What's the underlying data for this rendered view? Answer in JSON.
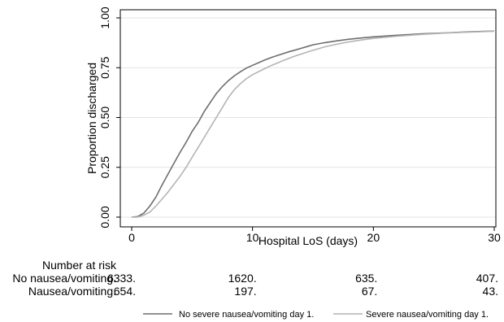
{
  "chart_data": {
    "type": "line",
    "title": "",
    "xlabel": "Hospital LoS (days)",
    "ylabel": "Proportion discharged",
    "xlim": [
      0,
      30
    ],
    "ylim": [
      0,
      1
    ],
    "x_ticks": [
      0,
      10,
      20,
      30
    ],
    "y_ticks": [
      0,
      0.25,
      0.5,
      0.75,
      1
    ],
    "x_tick_labels": [
      "0",
      "10",
      "20",
      "30"
    ],
    "y_tick_labels": [
      "0.00",
      "0.25",
      "0.50",
      "0.75",
      "1.00"
    ],
    "grid": "horizontal",
    "legend_position": "bottom",
    "series": [
      {
        "name": "No severe nausea/vomiting day 1",
        "color": "#6e6e6e",
        "x": [
          0,
          0.5,
          1,
          1.5,
          2,
          2.5,
          3,
          3.5,
          4,
          4.5,
          5,
          5.5,
          6,
          6.5,
          7,
          7.5,
          8,
          8.5,
          9,
          9.5,
          10,
          10.5,
          11,
          11.5,
          12,
          12.5,
          13,
          13.5,
          14,
          14.5,
          15,
          16,
          17,
          18,
          19,
          20,
          22,
          24,
          26,
          28,
          30
        ],
        "y": [
          0,
          0.003,
          0.02,
          0.055,
          0.1,
          0.16,
          0.215,
          0.27,
          0.325,
          0.375,
          0.43,
          0.475,
          0.53,
          0.575,
          0.62,
          0.655,
          0.685,
          0.71,
          0.73,
          0.748,
          0.762,
          0.775,
          0.788,
          0.8,
          0.81,
          0.82,
          0.83,
          0.838,
          0.847,
          0.856,
          0.865,
          0.876,
          0.885,
          0.893,
          0.899,
          0.905,
          0.913,
          0.92,
          0.925,
          0.93,
          0.934
        ]
      },
      {
        "name": "Severe nausea/vomiting day 1",
        "color": "#b4b4b4",
        "x": [
          0,
          0.5,
          1,
          1.5,
          2,
          2.5,
          3,
          3.5,
          4,
          4.5,
          5,
          5.5,
          6,
          6.5,
          7,
          7.5,
          8,
          8.5,
          9,
          9.5,
          10,
          10.5,
          11,
          11.5,
          12,
          12.5,
          13,
          13.5,
          14,
          14.5,
          15,
          16,
          17,
          18,
          19,
          20,
          22,
          24,
          26,
          28,
          30
        ],
        "y": [
          0,
          0,
          0.01,
          0.025,
          0.055,
          0.09,
          0.125,
          0.165,
          0.205,
          0.25,
          0.3,
          0.35,
          0.4,
          0.45,
          0.5,
          0.55,
          0.6,
          0.64,
          0.67,
          0.695,
          0.715,
          0.73,
          0.745,
          0.76,
          0.772,
          0.785,
          0.797,
          0.808,
          0.818,
          0.828,
          0.837,
          0.855,
          0.868,
          0.88,
          0.889,
          0.897,
          0.908,
          0.917,
          0.924,
          0.929,
          0.933
        ]
      }
    ],
    "legend": [
      {
        "label": "No severe nausea/vomiting day 1.",
        "color": "#6e6e6e"
      },
      {
        "label": "Severe nausea/vomiting day 1.",
        "color": "#b4b4b4"
      }
    ],
    "risk_table": {
      "title": "Number at risk",
      "times": [
        0,
        10,
        20,
        30
      ],
      "rows": [
        {
          "label": "No nausea/vomiting.",
          "values": [
            "6333.",
            "1620.",
            "635.",
            "407."
          ]
        },
        {
          "label": "Nausea/vomiting.",
          "values": [
            "654.",
            "197.",
            "67.",
            "43."
          ]
        }
      ]
    }
  }
}
